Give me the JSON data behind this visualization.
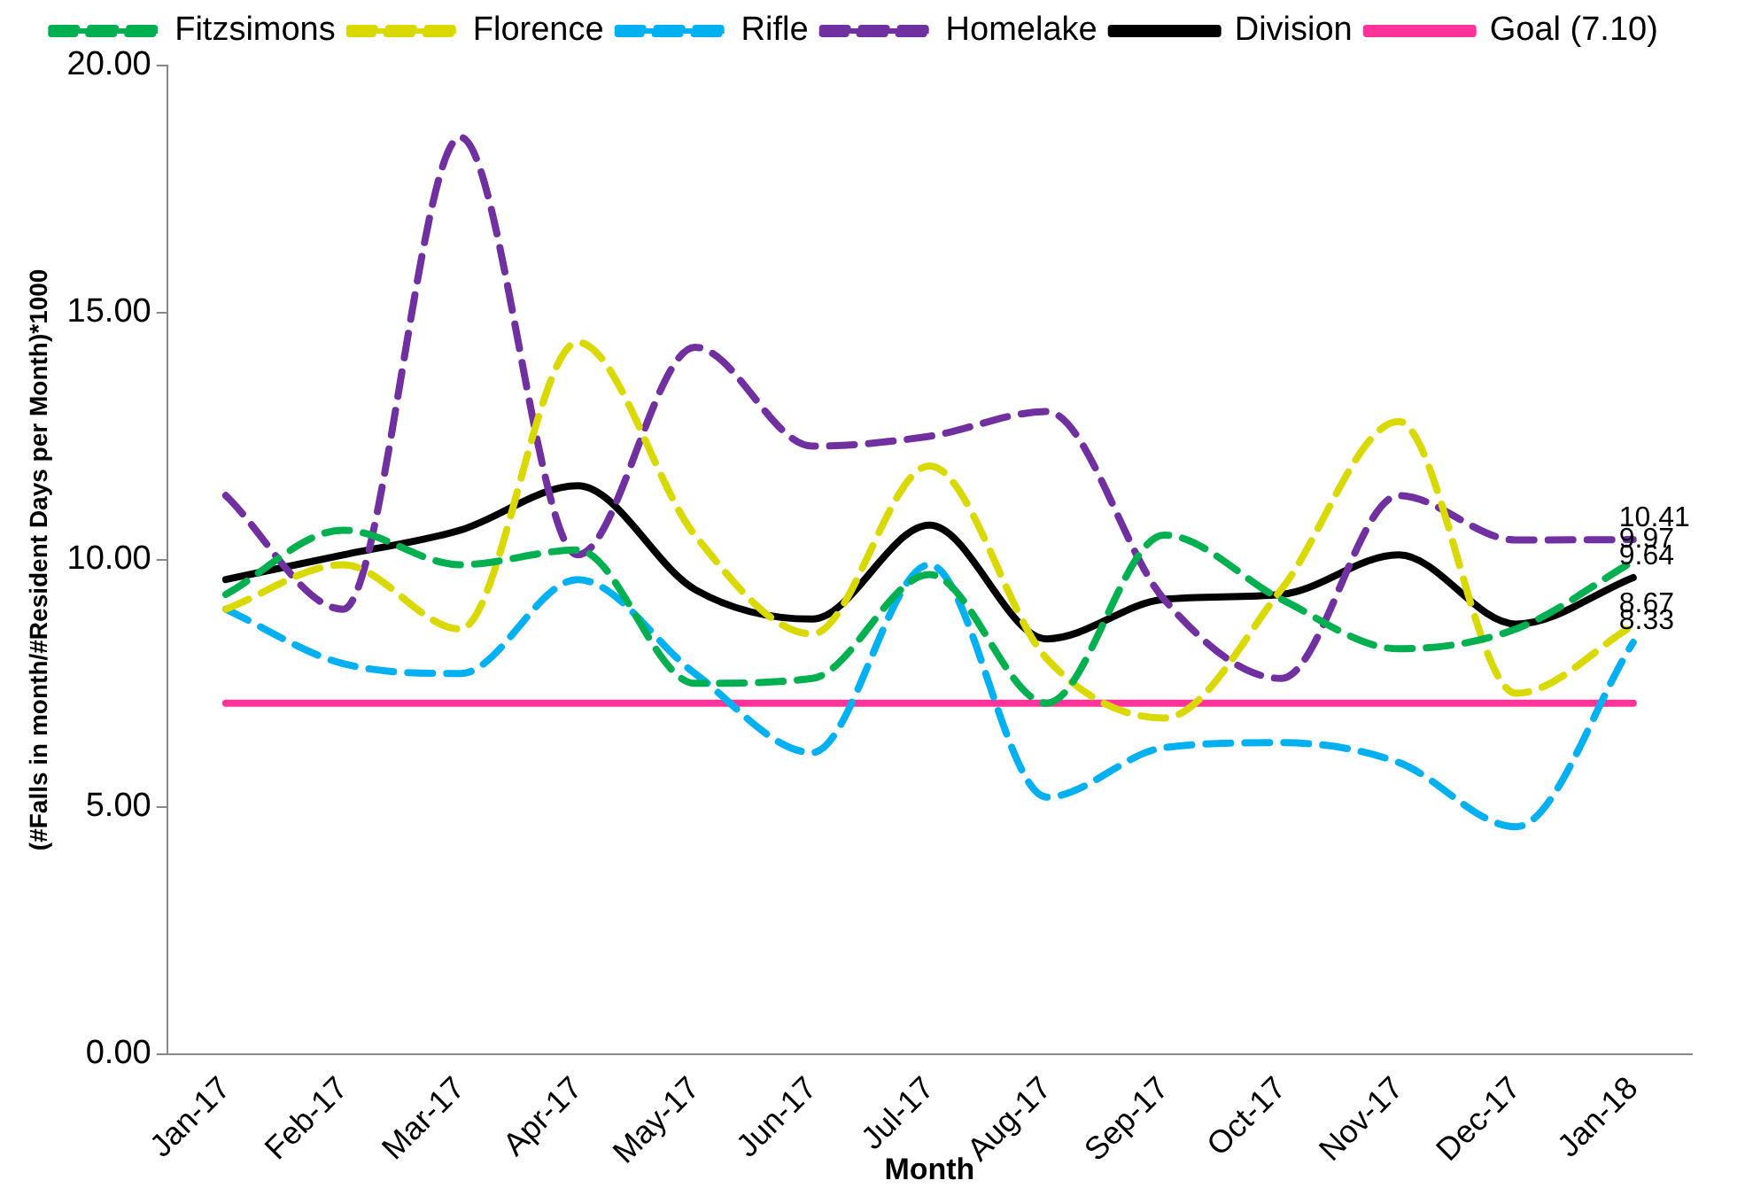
{
  "chart_data": {
    "type": "line",
    "xlabel": "Month",
    "ylabel": "(#Falls in month/#Resident Days per Month)*1000",
    "categories": [
      "Jan-17",
      "Feb-17",
      "Mar-17",
      "Apr-17",
      "May-17",
      "Jun-17",
      "Jul-17",
      "Aug-17",
      "Sep-17",
      "Oct-17",
      "Nov-17",
      "Dec-17",
      "Jan-18"
    ],
    "series": [
      {
        "name": "Fitzsimons",
        "color": "#00b050",
        "line_style": "dashed",
        "values": [
          9.3,
          10.6,
          9.9,
          10.2,
          7.5,
          7.6,
          9.7,
          7.1,
          10.5,
          9.2,
          8.2,
          8.6,
          9.97
        ],
        "value_labels": [
          null,
          null,
          null,
          null,
          null,
          null,
          null,
          null,
          null,
          null,
          null,
          null,
          "9.97"
        ]
      },
      {
        "name": "Florence",
        "color": "#d9d900",
        "line_style": "dashed",
        "values": [
          9.0,
          9.9,
          8.6,
          14.4,
          10.5,
          8.5,
          11.9,
          8.0,
          6.8,
          9.4,
          12.8,
          7.3,
          8.67
        ],
        "value_labels": [
          null,
          null,
          null,
          null,
          null,
          null,
          null,
          null,
          null,
          null,
          null,
          null,
          "8.67"
        ]
      },
      {
        "name": "Rifle",
        "color": "#00b0f0",
        "line_style": "dashed",
        "values": [
          9.0,
          7.9,
          7.7,
          9.6,
          7.7,
          6.1,
          9.9,
          5.2,
          6.2,
          6.3,
          5.9,
          4.6,
          8.33
        ],
        "value_labels": [
          null,
          null,
          null,
          null,
          null,
          null,
          null,
          null,
          null,
          null,
          null,
          null,
          "8.33"
        ]
      },
      {
        "name": "Homelake",
        "color": "#7030a0",
        "line_style": "dashed",
        "values": [
          11.3,
          9.0,
          18.55,
          10.1,
          14.3,
          12.3,
          12.5,
          13.0,
          9.2,
          7.6,
          11.3,
          10.4,
          10.41
        ],
        "value_labels": [
          null,
          null,
          null,
          null,
          null,
          null,
          null,
          null,
          null,
          null,
          null,
          null,
          "10.41"
        ]
      },
      {
        "name": "Division",
        "color": "#000000",
        "line_style": "solid",
        "values": [
          9.6,
          10.1,
          10.6,
          11.5,
          9.4,
          8.8,
          10.7,
          8.4,
          9.2,
          9.3,
          10.1,
          8.7,
          9.64
        ],
        "value_labels": [
          null,
          null,
          null,
          null,
          null,
          null,
          null,
          null,
          null,
          null,
          null,
          null,
          "9.64"
        ]
      },
      {
        "name": "Goal (7.10)",
        "color": "#ff3399",
        "line_style": "solid",
        "values": [
          7.1,
          7.1,
          7.1,
          7.1,
          7.1,
          7.1,
          7.1,
          7.1,
          7.1,
          7.1,
          7.1,
          7.1,
          7.1
        ]
      }
    ],
    "ylim": [
      0,
      20
    ],
    "yticks": [
      {
        "value": 0,
        "label": "0.00"
      },
      {
        "value": 5,
        "label": "5.00"
      },
      {
        "value": 10,
        "label": "10.00"
      },
      {
        "value": 15,
        "label": "15.00"
      },
      {
        "value": 20,
        "label": "20.00"
      }
    ],
    "grid": false,
    "legend": "top",
    "marker": "none"
  }
}
